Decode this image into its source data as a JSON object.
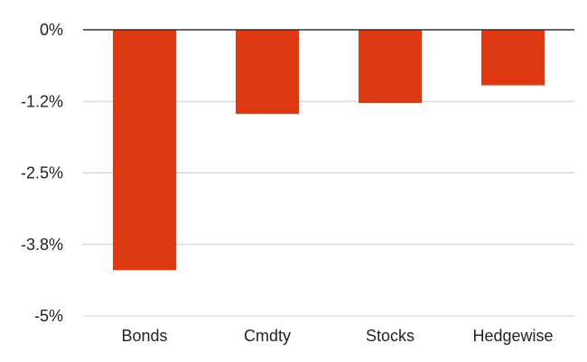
{
  "chart_data": {
    "type": "bar",
    "categories": [
      "Bonds",
      "Cmdty",
      "Stocks",
      "Hedgewise"
    ],
    "values": [
      -4.2,
      -1.47,
      -1.28,
      -0.97
    ],
    "ylim": [
      -5,
      0
    ],
    "y_ticks": [
      0,
      -1.25,
      -2.5,
      -3.75,
      -5
    ],
    "y_tick_labels": [
      "0%",
      "-1.2%",
      "-2.5%",
      "-3.8%",
      "-5%"
    ],
    "grid": true,
    "colors": {
      "bar": "#dc3912",
      "grid": "#cccccc",
      "zero_line": "#333333"
    }
  }
}
